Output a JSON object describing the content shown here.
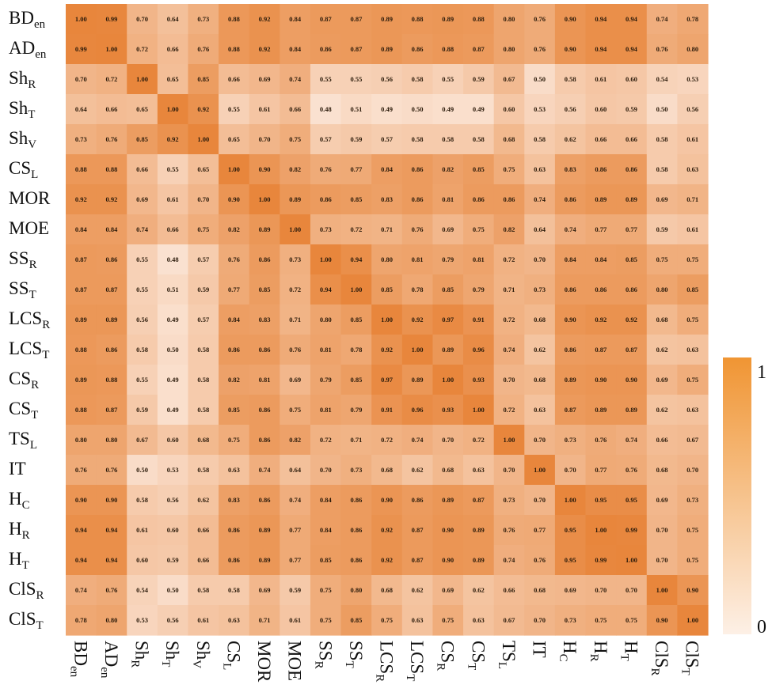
{
  "chart_data": {
    "type": "heatmap",
    "title": "",
    "row_labels": [
      {
        "main": "BD",
        "sub": "en"
      },
      {
        "main": "AD",
        "sub": "en"
      },
      {
        "main": "Sh",
        "sub": "R"
      },
      {
        "main": "Sh",
        "sub": "T"
      },
      {
        "main": "Sh",
        "sub": "V"
      },
      {
        "main": "CS",
        "sub": "L"
      },
      {
        "main": "MOR",
        "sub": ""
      },
      {
        "main": "MOE",
        "sub": ""
      },
      {
        "main": "SS",
        "sub": "R"
      },
      {
        "main": "SS",
        "sub": "T"
      },
      {
        "main": "LCS",
        "sub": "R"
      },
      {
        "main": "LCS",
        "sub": "T"
      },
      {
        "main": "CS",
        "sub": "R"
      },
      {
        "main": "CS",
        "sub": "T"
      },
      {
        "main": "TS",
        "sub": "L"
      },
      {
        "main": "IT",
        "sub": ""
      },
      {
        "main": "H",
        "sub": "C"
      },
      {
        "main": "H",
        "sub": "R"
      },
      {
        "main": "H",
        "sub": "T"
      },
      {
        "main": "ClS",
        "sub": "R"
      },
      {
        "main": "ClS",
        "sub": "T"
      }
    ],
    "col_labels": [
      {
        "main": "BD",
        "sub": "en"
      },
      {
        "main": "AD",
        "sub": "en"
      },
      {
        "main": "Sh",
        "sub": "R"
      },
      {
        "main": "Sh",
        "sub": "T"
      },
      {
        "main": "Sh",
        "sub": "V"
      },
      {
        "main": "CS",
        "sub": "L"
      },
      {
        "main": "MOR",
        "sub": ""
      },
      {
        "main": "MOE",
        "sub": ""
      },
      {
        "main": "SS",
        "sub": "R"
      },
      {
        "main": "SS",
        "sub": "T"
      },
      {
        "main": "LCS",
        "sub": "R"
      },
      {
        "main": "LCS",
        "sub": "T"
      },
      {
        "main": "CS",
        "sub": "R"
      },
      {
        "main": "CS",
        "sub": "T"
      },
      {
        "main": "TS",
        "sub": "L"
      },
      {
        "main": "IT",
        "sub": ""
      },
      {
        "main": "H",
        "sub": "C"
      },
      {
        "main": "H",
        "sub": "R"
      },
      {
        "main": "H",
        "sub": "T"
      },
      {
        "main": "ClS",
        "sub": "R"
      },
      {
        "main": "ClS",
        "sub": "T"
      }
    ],
    "values": [
      [
        1.0,
        0.99,
        0.7,
        0.64,
        0.73,
        0.88,
        0.92,
        0.84,
        0.87,
        0.87,
        0.89,
        0.88,
        0.89,
        0.88,
        0.8,
        0.76,
        0.9,
        0.94,
        0.94,
        0.74,
        0.78
      ],
      [
        0.99,
        1.0,
        0.72,
        0.66,
        0.76,
        0.88,
        0.92,
        0.84,
        0.86,
        0.87,
        0.89,
        0.86,
        0.88,
        0.87,
        0.8,
        0.76,
        0.9,
        0.94,
        0.94,
        0.76,
        0.8
      ],
      [
        0.7,
        0.72,
        1.0,
        0.65,
        0.85,
        0.66,
        0.69,
        0.74,
        0.55,
        0.55,
        0.56,
        0.58,
        0.55,
        0.59,
        0.67,
        0.5,
        0.58,
        0.61,
        0.6,
        0.54,
        0.53
      ],
      [
        0.64,
        0.66,
        0.65,
        1.0,
        0.92,
        0.55,
        0.61,
        0.66,
        0.48,
        0.51,
        0.49,
        0.5,
        0.49,
        0.49,
        0.6,
        0.53,
        0.56,
        0.6,
        0.59,
        0.5,
        0.56
      ],
      [
        0.73,
        0.76,
        0.85,
        0.92,
        1.0,
        0.65,
        0.7,
        0.75,
        0.57,
        0.59,
        0.57,
        0.58,
        0.58,
        0.58,
        0.68,
        0.58,
        0.62,
        0.66,
        0.66,
        0.58,
        0.61
      ],
      [
        0.88,
        0.88,
        0.66,
        0.55,
        0.65,
        1.0,
        0.9,
        0.82,
        0.76,
        0.77,
        0.84,
        0.86,
        0.82,
        0.85,
        0.75,
        0.63,
        0.83,
        0.86,
        0.86,
        0.58,
        0.63
      ],
      [
        0.92,
        0.92,
        0.69,
        0.61,
        0.7,
        0.9,
        1.0,
        0.89,
        0.86,
        0.85,
        0.83,
        0.86,
        0.81,
        0.86,
        0.86,
        0.74,
        0.86,
        0.89,
        0.89,
        0.69,
        0.71
      ],
      [
        0.84,
        0.84,
        0.74,
        0.66,
        0.75,
        0.82,
        0.89,
        1.0,
        0.73,
        0.72,
        0.71,
        0.76,
        0.69,
        0.75,
        0.82,
        0.64,
        0.74,
        0.77,
        0.77,
        0.59,
        0.61
      ],
      [
        0.87,
        0.86,
        0.55,
        0.48,
        0.57,
        0.76,
        0.86,
        0.73,
        1.0,
        0.94,
        0.8,
        0.81,
        0.79,
        0.81,
        0.72,
        0.7,
        0.84,
        0.84,
        0.85,
        0.75,
        0.75
      ],
      [
        0.87,
        0.87,
        0.55,
        0.51,
        0.59,
        0.77,
        0.85,
        0.72,
        0.94,
        1.0,
        0.85,
        0.78,
        0.85,
        0.79,
        0.71,
        0.73,
        0.86,
        0.86,
        0.86,
        0.8,
        0.85
      ],
      [
        0.89,
        0.89,
        0.56,
        0.49,
        0.57,
        0.84,
        0.83,
        0.71,
        0.8,
        0.85,
        1.0,
        0.92,
        0.97,
        0.91,
        0.72,
        0.68,
        0.9,
        0.92,
        0.92,
        0.68,
        0.75
      ],
      [
        0.88,
        0.86,
        0.58,
        0.5,
        0.58,
        0.86,
        0.86,
        0.76,
        0.81,
        0.78,
        0.92,
        1.0,
        0.89,
        0.96,
        0.74,
        0.62,
        0.86,
        0.87,
        0.87,
        0.62,
        0.63
      ],
      [
        0.89,
        0.88,
        0.55,
        0.49,
        0.58,
        0.82,
        0.81,
        0.69,
        0.79,
        0.85,
        0.97,
        0.89,
        1.0,
        0.93,
        0.7,
        0.68,
        0.89,
        0.9,
        0.9,
        0.69,
        0.75
      ],
      [
        0.88,
        0.87,
        0.59,
        0.49,
        0.58,
        0.85,
        0.86,
        0.75,
        0.81,
        0.79,
        0.91,
        0.96,
        0.93,
        1.0,
        0.72,
        0.63,
        0.87,
        0.89,
        0.89,
        0.62,
        0.63
      ],
      [
        0.8,
        0.8,
        0.67,
        0.6,
        0.68,
        0.75,
        0.86,
        0.82,
        0.72,
        0.71,
        0.72,
        0.74,
        0.7,
        0.72,
        1.0,
        0.7,
        0.73,
        0.76,
        0.74,
        0.66,
        0.67
      ],
      [
        0.76,
        0.76,
        0.5,
        0.53,
        0.58,
        0.63,
        0.74,
        0.64,
        0.7,
        0.73,
        0.68,
        0.62,
        0.68,
        0.63,
        0.7,
        1.0,
        0.7,
        0.77,
        0.76,
        0.68,
        0.7
      ],
      [
        0.9,
        0.9,
        0.58,
        0.56,
        0.62,
        0.83,
        0.86,
        0.74,
        0.84,
        0.86,
        0.9,
        0.86,
        0.89,
        0.87,
        0.73,
        0.7,
        1.0,
        0.95,
        0.95,
        0.69,
        0.73
      ],
      [
        0.94,
        0.94,
        0.61,
        0.6,
        0.66,
        0.86,
        0.89,
        0.77,
        0.84,
        0.86,
        0.92,
        0.87,
        0.9,
        0.89,
        0.76,
        0.77,
        0.95,
        1.0,
        0.99,
        0.7,
        0.75
      ],
      [
        0.94,
        0.94,
        0.6,
        0.59,
        0.66,
        0.86,
        0.89,
        0.77,
        0.85,
        0.86,
        0.92,
        0.87,
        0.9,
        0.89,
        0.74,
        0.76,
        0.95,
        0.99,
        1.0,
        0.7,
        0.75
      ],
      [
        0.74,
        0.76,
        0.54,
        0.5,
        0.58,
        0.58,
        0.69,
        0.59,
        0.75,
        0.8,
        0.68,
        0.62,
        0.69,
        0.62,
        0.66,
        0.68,
        0.69,
        0.7,
        0.7,
        1.0,
        0.9
      ],
      [
        0.78,
        0.8,
        0.53,
        0.56,
        0.61,
        0.63,
        0.71,
        0.61,
        0.75,
        0.85,
        0.75,
        0.63,
        0.75,
        0.63,
        0.67,
        0.7,
        0.73,
        0.75,
        0.75,
        0.9,
        1.0
      ]
    ],
    "colorbar": {
      "min_label": "0",
      "max_label": "1",
      "range": [
        0,
        1
      ]
    },
    "colors": {
      "low": "#fcebe0",
      "high": "#e8863c",
      "bar_low": "#fdf0e6",
      "bar_high": "#f09533"
    }
  }
}
